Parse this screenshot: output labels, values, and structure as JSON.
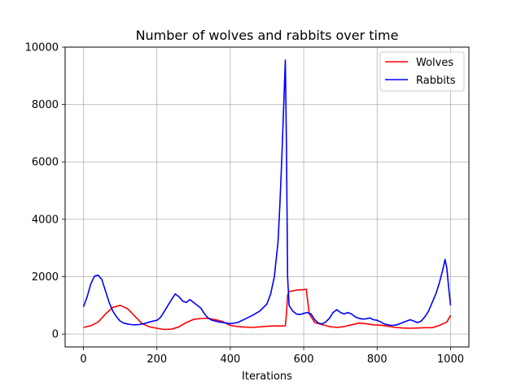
{
  "chart_data": {
    "type": "line",
    "title": "Number of wolves and rabbits over time",
    "xlabel": "Iterations",
    "ylabel": "",
    "xlim": [
      -50,
      1050
    ],
    "ylim": [
      -450,
      10000
    ],
    "xticks": [
      0,
      200,
      400,
      600,
      800,
      1000
    ],
    "yticks": [
      0,
      2000,
      4000,
      6000,
      8000,
      10000
    ],
    "grid": true,
    "legend_position": "top-right",
    "series": [
      {
        "name": "Wolves",
        "color": "#ff0000",
        "x": [
          0,
          20,
          40,
          60,
          80,
          100,
          120,
          140,
          160,
          180,
          200,
          220,
          240,
          260,
          280,
          300,
          320,
          340,
          360,
          380,
          400,
          420,
          440,
          460,
          480,
          500,
          520,
          540,
          550,
          553,
          556,
          560,
          580,
          600,
          607,
          615,
          630,
          650,
          670,
          690,
          710,
          730,
          750,
          770,
          790,
          810,
          830,
          850,
          870,
          890,
          910,
          930,
          950,
          970,
          990,
          1000
        ],
        "y": [
          230,
          290,
          420,
          700,
          930,
          1000,
          880,
          620,
          360,
          250,
          200,
          160,
          170,
          250,
          400,
          510,
          540,
          550,
          500,
          430,
          300,
          260,
          240,
          230,
          250,
          270,
          280,
          280,
          290,
          700,
          1350,
          1480,
          1530,
          1550,
          1560,
          700,
          400,
          330,
          260,
          230,
          260,
          320,
          380,
          360,
          320,
          310,
          270,
          230,
          210,
          200,
          210,
          220,
          220,
          300,
          420,
          650
        ]
      },
      {
        "name": "Rabbits",
        "color": "#0000ff",
        "x": [
          0,
          10,
          20,
          30,
          40,
          50,
          60,
          70,
          80,
          90,
          100,
          110,
          120,
          130,
          140,
          150,
          160,
          170,
          180,
          190,
          200,
          210,
          220,
          230,
          240,
          250,
          260,
          270,
          280,
          290,
          300,
          310,
          320,
          330,
          340,
          350,
          360,
          370,
          380,
          390,
          400,
          420,
          440,
          460,
          480,
          500,
          510,
          520,
          530,
          535,
          540,
          545,
          550,
          553,
          556,
          560,
          570,
          580,
          590,
          600,
          610,
          620,
          630,
          640,
          650,
          660,
          670,
          680,
          690,
          700,
          710,
          720,
          730,
          740,
          750,
          760,
          770,
          780,
          790,
          800,
          810,
          820,
          830,
          840,
          850,
          860,
          870,
          880,
          890,
          900,
          910,
          920,
          930,
          940,
          950,
          960,
          970,
          980,
          985,
          990,
          995,
          1000
        ],
        "y": [
          950,
          1300,
          1750,
          2020,
          2050,
          1900,
          1500,
          1100,
          800,
          600,
          450,
          380,
          350,
          330,
          320,
          330,
          350,
          380,
          420,
          450,
          480,
          580,
          780,
          1000,
          1200,
          1400,
          1300,
          1150,
          1100,
          1200,
          1100,
          1000,
          900,
          700,
          550,
          480,
          450,
          420,
          400,
          380,
          360,
          400,
          520,
          650,
          800,
          1050,
          1400,
          2000,
          3200,
          4500,
          6000,
          7800,
          9550,
          6500,
          2000,
          1000,
          800,
          700,
          680,
          720,
          750,
          700,
          500,
          380,
          350,
          420,
          550,
          750,
          850,
          750,
          700,
          750,
          700,
          600,
          550,
          520,
          530,
          560,
          500,
          480,
          420,
          350,
          320,
          300,
          310,
          350,
          400,
          450,
          500,
          450,
          400,
          450,
          600,
          800,
          1100,
          1400,
          1800,
          2300,
          2600,
          2300,
          1600,
          1000
        ]
      }
    ]
  }
}
